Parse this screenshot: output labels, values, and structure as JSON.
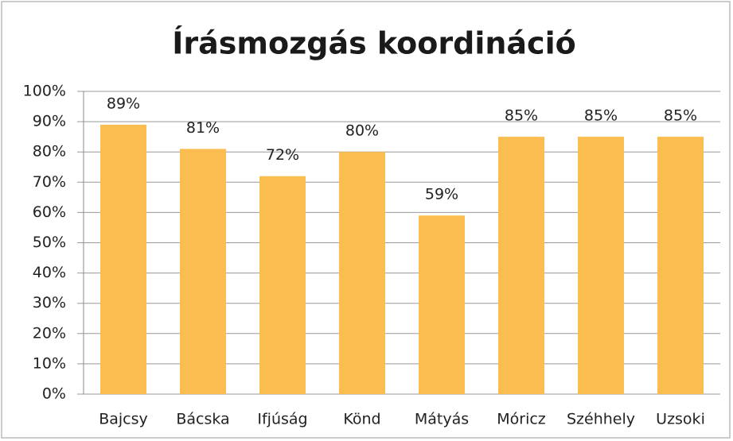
{
  "chart_data": {
    "type": "bar",
    "title": "Írásmozgás koordináció",
    "categories": [
      "Bajcsy",
      "Bácska",
      "Ifjúság",
      "Könd",
      "Mátyás",
      "Móricz",
      "Széhhely",
      "Uzsoki"
    ],
    "values": [
      89,
      81,
      72,
      80,
      59,
      85,
      85,
      85
    ],
    "value_labels": [
      "89%",
      "81%",
      "72%",
      "80%",
      "59%",
      "85%",
      "85%",
      "85%"
    ],
    "color": "#fbbd4f",
    "ylim": [
      0,
      100
    ],
    "yticks": [
      {
        "value": 0,
        "label": "0%"
      },
      {
        "value": 10,
        "label": "10%"
      },
      {
        "value": 20,
        "label": "20%"
      },
      {
        "value": 30,
        "label": "30%"
      },
      {
        "value": 40,
        "label": "40%"
      },
      {
        "value": 50,
        "label": "50%"
      },
      {
        "value": 60,
        "label": "60%"
      },
      {
        "value": 70,
        "label": "70%"
      },
      {
        "value": 80,
        "label": "80%"
      },
      {
        "value": 90,
        "label": "90%"
      },
      {
        "value": 100,
        "label": "100%"
      }
    ],
    "grid": true
  }
}
